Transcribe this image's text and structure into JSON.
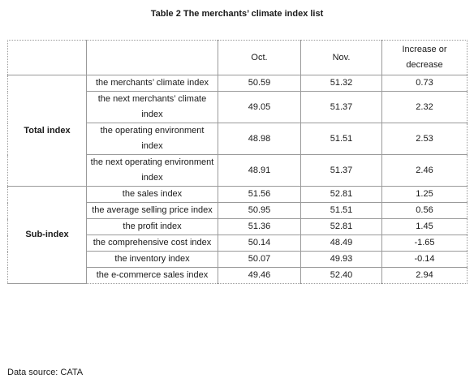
{
  "title": "Table 2 The merchants’ climate index list",
  "headers": {
    "oct": "Oct.",
    "nov": "Nov.",
    "change": "Increase or decrease"
  },
  "groups": [
    {
      "name": "Total index",
      "rows": [
        {
          "label": "the merchants’ climate index",
          "oct": "50.59",
          "nov": "51.32",
          "change": "0.73"
        },
        {
          "label": "the next merchants’ climate index",
          "oct": "49.05",
          "nov": "51.37",
          "change": "2.32"
        },
        {
          "label": "the operating environment index",
          "oct": "48.98",
          "nov": "51.51",
          "change": "2.53"
        },
        {
          "label": "the next operating environment index",
          "oct": "48.91",
          "nov": "51.37",
          "change": "2.46"
        }
      ]
    },
    {
      "name": "Sub-index",
      "rows": [
        {
          "label": "the sales index",
          "oct": "51.56",
          "nov": "52.81",
          "change": "1.25"
        },
        {
          "label": "the average selling price index",
          "oct": "50.95",
          "nov": "51.51",
          "change": "0.56"
        },
        {
          "label": "the profit index",
          "oct": "51.36",
          "nov": "52.81",
          "change": "1.45"
        },
        {
          "label": "the comprehensive cost index",
          "oct": "50.14",
          "nov": "48.49",
          "change": "-1.65"
        },
        {
          "label": "the inventory index",
          "oct": "50.07",
          "nov": "49.93",
          "change": "-0.14"
        },
        {
          "label": "the e-commerce sales index",
          "oct": "49.46",
          "nov": "52.40",
          "change": "2.94"
        }
      ]
    }
  ],
  "source": "Data source: CATA"
}
